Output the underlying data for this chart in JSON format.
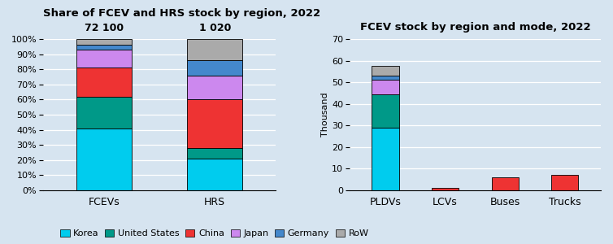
{
  "left_title": "Share of FCEV and HRS stock by region, 2022",
  "right_title": "FCEV stock by region and mode, 2022",
  "regions": [
    "Korea",
    "United States",
    "China",
    "Japan",
    "Germany",
    "RoW"
  ],
  "colors": [
    "#00CCEE",
    "#009988",
    "#EE3333",
    "#CC88EE",
    "#4488CC",
    "#AAAAAA"
  ],
  "fcev_shares": [
    0.41,
    0.21,
    0.19,
    0.12,
    0.03,
    0.04
  ],
  "hrs_shares": [
    0.21,
    0.07,
    0.32,
    0.16,
    0.1,
    0.14
  ],
  "fcev_label": "72 100",
  "hrs_label": "1 020",
  "bar_categories": [
    "FCEVs",
    "HRS"
  ],
  "right_categories": [
    "PLDVs",
    "LCVs",
    "Buses",
    "Trucks"
  ],
  "right_ylabel": "Thousand",
  "right_ylim": [
    0,
    70
  ],
  "right_yticks": [
    0,
    10,
    20,
    30,
    40,
    50,
    60,
    70
  ],
  "pldvs": [
    29.0,
    15.5,
    0.0,
    6.5,
    2.0,
    4.5
  ],
  "lcvs": [
    0.0,
    0.0,
    1.0,
    0.0,
    0.0,
    0.0
  ],
  "buses": [
    0.0,
    0.0,
    6.2,
    0.0,
    0.0,
    0.0
  ],
  "trucks": [
    0.0,
    0.0,
    7.0,
    0.0,
    0.0,
    0.0
  ],
  "bg_color": "#D6E4F0",
  "legend_labels": [
    "Korea",
    "United States",
    "China",
    "Japan",
    "Germany",
    "RoW"
  ]
}
